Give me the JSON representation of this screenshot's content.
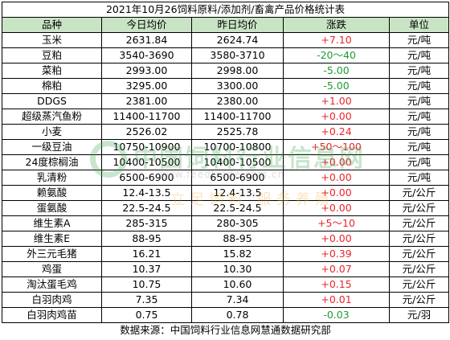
{
  "title": "2021年10月26饲料原料/添加剂/畜禽产品价格统计表",
  "headers": [
    "品种",
    "今日均价",
    "昨日均价",
    "涨跌",
    "单位"
  ],
  "rows": [
    {
      "name": "玉米",
      "today": "2631.84",
      "yesterday": "2624.74",
      "change": "+7.10",
      "dir": "up",
      "unit": "元/吨"
    },
    {
      "name": "豆粕",
      "today": "3540-3690",
      "yesterday": "3580-3710",
      "change": "-20～40",
      "dir": "down",
      "unit": "元/吨"
    },
    {
      "name": "菜粕",
      "today": "2993.00",
      "yesterday": "2998.00",
      "change": "-5.00",
      "dir": "down",
      "unit": "元/吨"
    },
    {
      "name": "棉粕",
      "today": "3295.00",
      "yesterday": "3300.00",
      "change": "-5.00",
      "dir": "down",
      "unit": "元/吨"
    },
    {
      "name": "DDGS",
      "today": "2381.00",
      "yesterday": "2380.00",
      "change": "+1.00",
      "dir": "up",
      "unit": "元/吨"
    },
    {
      "name": "超级蒸汽鱼粉",
      "today": "11400-11700",
      "yesterday": "11400-11700",
      "change": "+0.00",
      "dir": "up",
      "unit": "元/吨"
    },
    {
      "name": "小麦",
      "today": "2526.02",
      "yesterday": "2525.78",
      "change": "+0.24",
      "dir": "up",
      "unit": "元/吨"
    },
    {
      "name": "一级豆油",
      "today": "10750-10900",
      "yesterday": "10700-10800",
      "change": "+50～100",
      "dir": "up",
      "unit": "元/吨"
    },
    {
      "name": "24度棕榈油",
      "today": "10400-10500",
      "yesterday": "10400-10500",
      "change": "+0.00",
      "dir": "up",
      "unit": "元/吨"
    },
    {
      "name": "乳清粉",
      "today": "6500-6900",
      "yesterday": "6500-6900",
      "change": "+0.00",
      "dir": "up",
      "unit": "元/吨"
    },
    {
      "name": "赖氨酸",
      "today": "12.4-13.5",
      "yesterday": "12.4-13.5",
      "change": "+0.00",
      "dir": "up",
      "unit": "元/公斤"
    },
    {
      "name": "蛋氨酸",
      "today": "22.5-24.5",
      "yesterday": "22.5-24.5",
      "change": "+0.00",
      "dir": "up",
      "unit": "元/公斤"
    },
    {
      "name": "维生素A",
      "today": "285-315",
      "yesterday": "280-305",
      "change": "+5～10",
      "dir": "up",
      "unit": "元/公斤"
    },
    {
      "name": "维生素E",
      "today": "88-95",
      "yesterday": "88-95",
      "change": "+0.00",
      "dir": "up",
      "unit": "元/公斤"
    },
    {
      "name": "外三元毛猪",
      "today": "16.21",
      "yesterday": "15.82",
      "change": "+0.39",
      "dir": "up",
      "unit": "元/公斤"
    },
    {
      "name": "鸡蛋",
      "today": "10.37",
      "yesterday": "10.30",
      "change": "+0.07",
      "dir": "up",
      "unit": "元/公斤"
    },
    {
      "name": "淘汰蛋毛鸡",
      "today": "10.75",
      "yesterday": "10.60",
      "change": "+0.15",
      "dir": "up",
      "unit": "元/公斤"
    },
    {
      "name": "白羽肉鸡",
      "today": "7.35",
      "yesterday": "7.34",
      "change": "+0.01",
      "dir": "up",
      "unit": "元/公斤"
    },
    {
      "name": "白羽肉鸡苗",
      "today": "0.75",
      "yesterday": "0.78",
      "change": "-0.03",
      "dir": "down",
      "unit": "元/羽"
    }
  ],
  "source": "数据来源：中国饲料行业信息网慧通数据研究部",
  "watermark": {
    "text": "中国饲料行业信息网",
    "url": "www.feedtrade.com.cn",
    "slogan": "立足饲料 服务养殖"
  },
  "colors": {
    "header_bg": "#c9e4c5",
    "up": "#e8262d",
    "down": "#1f9d32",
    "watermark": "#3aa04a"
  }
}
